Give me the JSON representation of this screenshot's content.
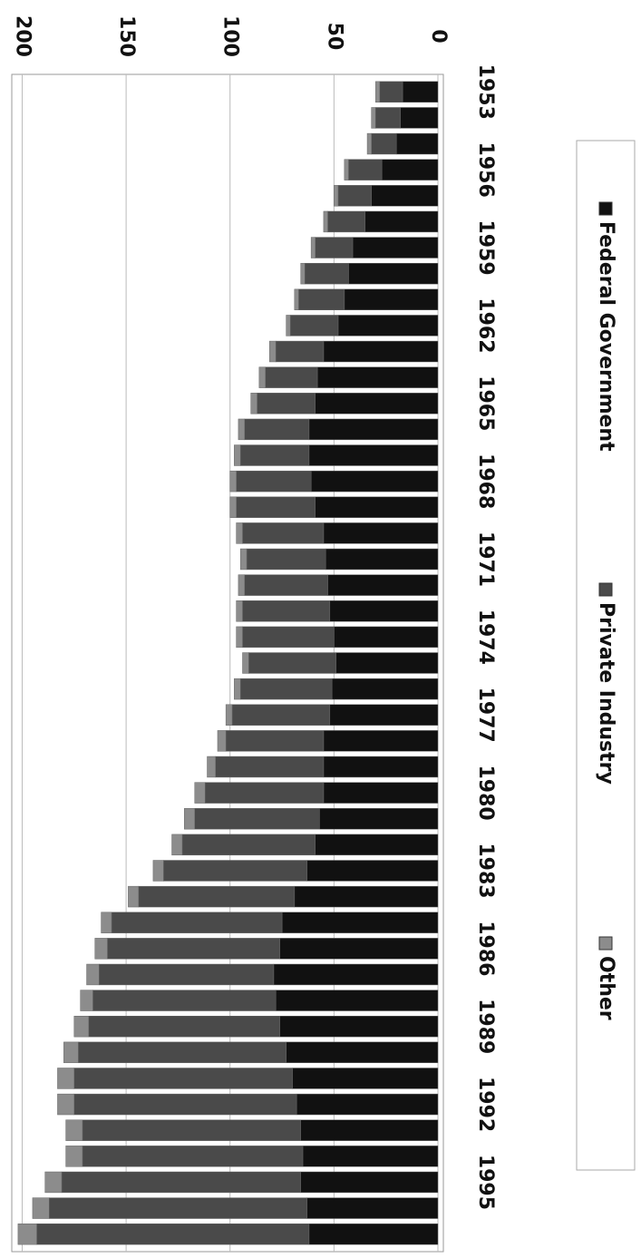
{
  "chart_data": {
    "type": "stacked_bar",
    "categories": [
      "1953",
      null,
      null,
      "1956",
      null,
      null,
      "1959",
      null,
      null,
      "1962",
      null,
      null,
      "1965",
      null,
      null,
      "1968",
      null,
      null,
      "1971",
      null,
      null,
      "1974",
      null,
      null,
      "1977",
      null,
      null,
      "1980",
      null,
      null,
      "1983",
      null,
      null,
      "1986",
      null,
      null,
      "1989",
      null,
      null,
      "1992",
      null,
      null,
      "1995",
      null,
      null
    ],
    "series": [
      {
        "name": "Federal Government",
        "color": "#111111",
        "values": [
          17,
          18,
          20,
          27,
          32,
          35,
          41,
          43,
          45,
          48,
          55,
          58,
          59,
          62,
          62,
          61,
          59,
          55,
          54,
          53,
          52,
          50,
          49,
          51,
          52,
          55,
          55,
          55,
          57,
          59,
          63,
          69,
          75,
          76,
          79,
          78,
          76,
          73,
          70,
          68,
          66,
          65,
          66,
          63,
          62
        ]
      },
      {
        "name": "Private Industry",
        "color": "#4a4a4a",
        "values": [
          11,
          12,
          12,
          16,
          16,
          18,
          18,
          21,
          22,
          23,
          23,
          25,
          28,
          31,
          33,
          36,
          38,
          39,
          38,
          40,
          42,
          44,
          42,
          44,
          47,
          47,
          52,
          57,
          60,
          64,
          69,
          75,
          82,
          83,
          84,
          88,
          92,
          100,
          105,
          107,
          105,
          106,
          115,
          124,
          131
        ]
      },
      {
        "name": "Other",
        "color": "#8c8c8c",
        "values": [
          2,
          2,
          2,
          2,
          2,
          2,
          2,
          2,
          2,
          2,
          3,
          3,
          3,
          3,
          3,
          3,
          3,
          3,
          3,
          3,
          3,
          3,
          3,
          3,
          3,
          4,
          4,
          5,
          5,
          5,
          5,
          5,
          5,
          6,
          6,
          6,
          7,
          7,
          8,
          8,
          8,
          8,
          8,
          8,
          9
        ]
      }
    ],
    "ylim": [
      0,
      205
    ],
    "yticks": [
      0,
      50,
      100,
      150,
      200
    ],
    "grid": true
  }
}
